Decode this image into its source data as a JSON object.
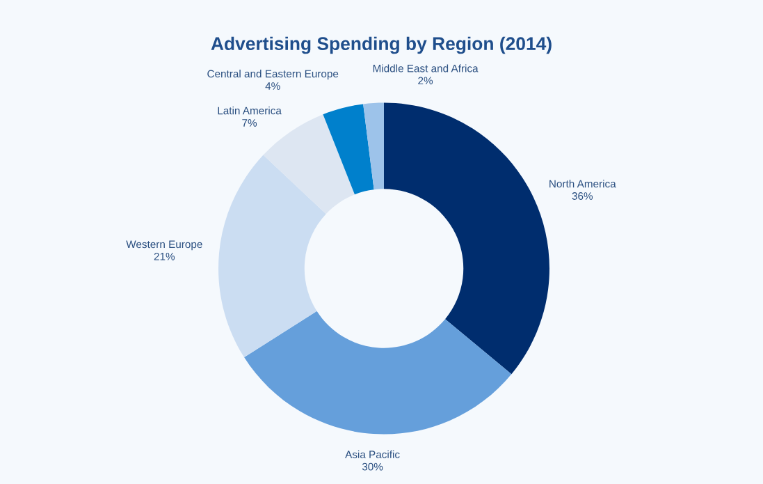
{
  "chart_data": {
    "type": "donut",
    "title": "Advertising Spending by Region (2014)",
    "categories": [
      "North America",
      "Asia Pacific",
      "Western Europe",
      "Latin America",
      "Central and Eastern Europe",
      "Middle East and Africa"
    ],
    "values": [
      36,
      30,
      21,
      7,
      4,
      2
    ],
    "colors": [
      "#002d6e",
      "#659fdb",
      "#cbddf2",
      "#dde6f2",
      "#0080cc",
      "#9dc3ea"
    ],
    "value_labels": [
      "36%",
      "30%",
      "21%",
      "7%",
      "4%",
      "2%"
    ],
    "legend": false
  }
}
